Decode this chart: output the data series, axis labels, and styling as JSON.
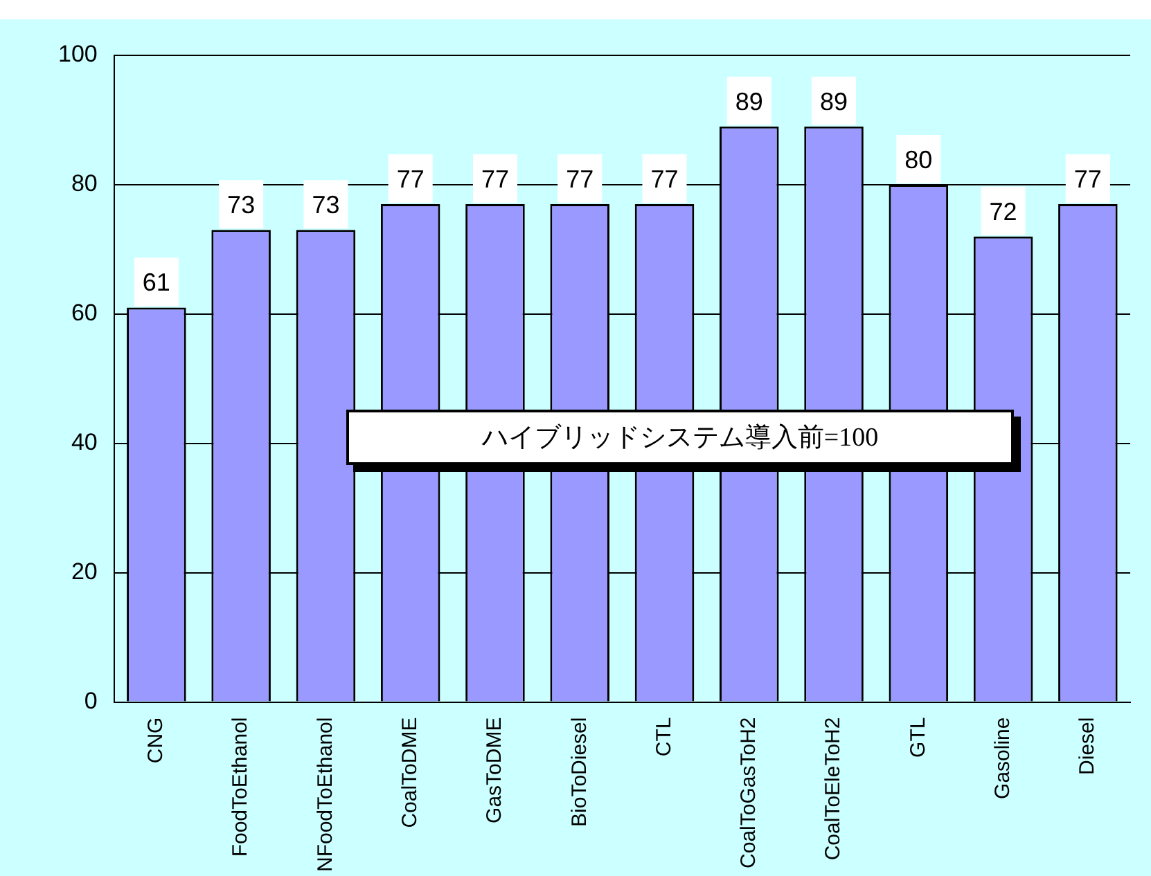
{
  "chart_data": {
    "type": "bar",
    "categories": [
      "CNG",
      "FoodToEthanol",
      "NFoodToEthanol",
      "CoalToDME",
      "GasToDME",
      "BioToDiesel",
      "CTL",
      "CoalToGasToH2",
      "CoalToEleToH2",
      "GTL",
      "Gasoline",
      "Diesel"
    ],
    "values": [
      61,
      73,
      73,
      77,
      77,
      77,
      77,
      89,
      89,
      80,
      72,
      77
    ],
    "color": "#9999ff",
    "ylim": [
      0,
      100
    ],
    "yticks": [
      0,
      20,
      40,
      60,
      80,
      100
    ],
    "grid": "y",
    "data_labels": true,
    "annotations": [
      "ハイブリッドシステム導入前=100"
    ]
  }
}
